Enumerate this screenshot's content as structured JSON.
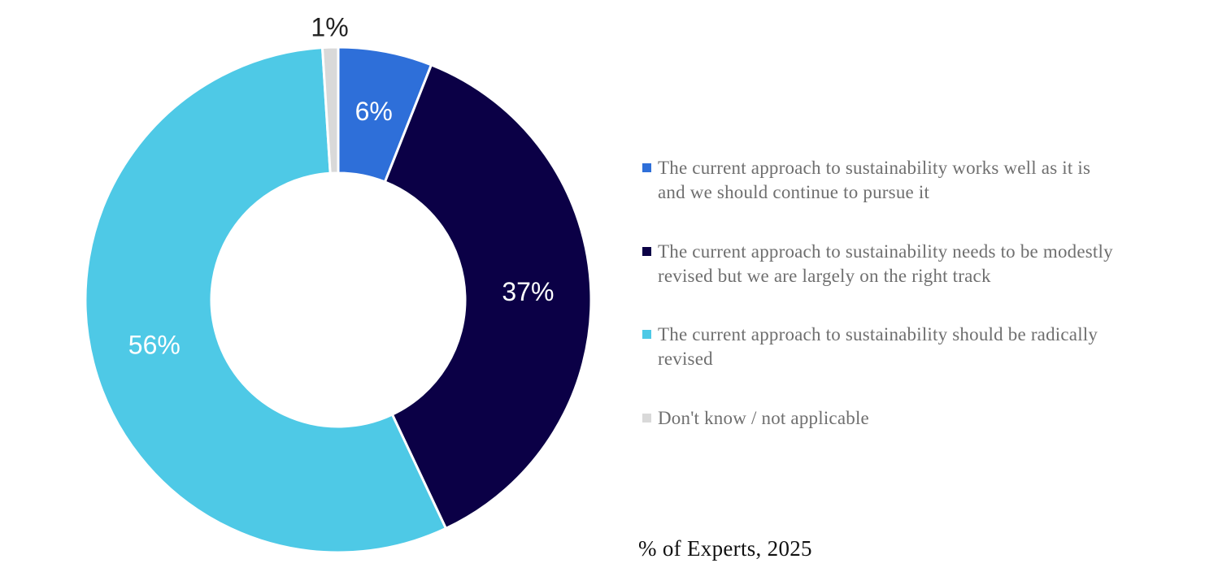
{
  "chart_data": {
    "type": "pie",
    "subtype": "donut",
    "title": "",
    "footer": "% of Experts, 2025",
    "categories": [
      "The current approach to sustainability works well as it is and we should continue to pursue it",
      "The current approach to sustainability needs to be modestly revised but we are largely on the right track",
      "The current approach to sustainability should be radically revised",
      "Don't know / not applicable"
    ],
    "values": [
      6,
      37,
      56,
      1
    ],
    "value_labels": [
      "6%",
      "37%",
      "56%",
      "1%"
    ],
    "colors": [
      "#2E6FD9",
      "#0B0046",
      "#4EC9E6",
      "#D9D9D9"
    ],
    "legend_position": "right"
  }
}
